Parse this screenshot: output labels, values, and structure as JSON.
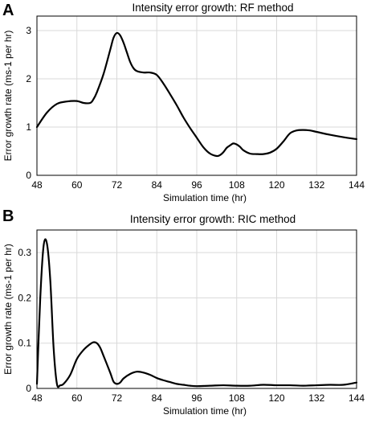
{
  "chart_data": [
    {
      "panel_label": "A",
      "type": "line",
      "title": "Intensity error growth: RF method",
      "xlabel": "Simulation time (hr)",
      "ylabel": "Error growth rate (ms-1 per hr)",
      "xlim": [
        48,
        144
      ],
      "ylim": [
        0,
        3.3
      ],
      "xticks": [
        48,
        60,
        72,
        84,
        96,
        108,
        120,
        132,
        144
      ],
      "yticks": [
        0,
        1,
        2,
        3
      ],
      "ytick_labels": [
        "0",
        "1",
        "2",
        "3"
      ],
      "grid": true,
      "series": [
        {
          "x": [
            48,
            51,
            54,
            57,
            60,
            62,
            64,
            65,
            66,
            68,
            70,
            71,
            72,
            73,
            74,
            75,
            76,
            77,
            78,
            80,
            82,
            84,
            86,
            88,
            90,
            92,
            94,
            96,
            98,
            100,
            102,
            103,
            104,
            105,
            106,
            107,
            108,
            109,
            110,
            112,
            114,
            116,
            118,
            120,
            122,
            124,
            126,
            128,
            130,
            132,
            136,
            140,
            144
          ],
          "y": [
            1.0,
            1.3,
            1.48,
            1.53,
            1.54,
            1.5,
            1.5,
            1.58,
            1.72,
            2.1,
            2.6,
            2.85,
            2.95,
            2.9,
            2.75,
            2.55,
            2.35,
            2.22,
            2.16,
            2.13,
            2.13,
            2.08,
            1.9,
            1.68,
            1.45,
            1.2,
            0.98,
            0.78,
            0.58,
            0.45,
            0.4,
            0.42,
            0.48,
            0.57,
            0.62,
            0.66,
            0.64,
            0.59,
            0.52,
            0.45,
            0.44,
            0.44,
            0.47,
            0.55,
            0.7,
            0.87,
            0.93,
            0.94,
            0.93,
            0.9,
            0.84,
            0.79,
            0.75
          ]
        }
      ]
    },
    {
      "panel_label": "B",
      "type": "line",
      "title": "Intensity error growth: RIC method",
      "xlabel": "Simulation time (hr)",
      "ylabel": "Error growth rate (ms-1 per hr)",
      "xlim": [
        48,
        144
      ],
      "ylim": [
        0,
        0.35
      ],
      "xticks": [
        48,
        60,
        72,
        84,
        96,
        108,
        120,
        132,
        144
      ],
      "yticks": [
        0,
        0.1,
        0.2,
        0.3
      ],
      "ytick_labels": [
        "0",
        "0.1",
        "0.2",
        "0.3"
      ],
      "grid": true,
      "series": [
        {
          "x": [
            48,
            49,
            50,
            51,
            52,
            53,
            54,
            55,
            56,
            58,
            60,
            62,
            64,
            65,
            66,
            67,
            68,
            70,
            71,
            72,
            73,
            74,
            76,
            78,
            80,
            82,
            84,
            86,
            88,
            90,
            92,
            94,
            96,
            100,
            104,
            108,
            112,
            116,
            120,
            124,
            128,
            132,
            136,
            140,
            144
          ],
          "y": [
            0.01,
            0.2,
            0.315,
            0.32,
            0.24,
            0.09,
            0.01,
            0.007,
            0.01,
            0.03,
            0.065,
            0.085,
            0.098,
            0.102,
            0.1,
            0.09,
            0.072,
            0.035,
            0.015,
            0.01,
            0.013,
            0.022,
            0.032,
            0.037,
            0.035,
            0.03,
            0.023,
            0.018,
            0.014,
            0.01,
            0.008,
            0.006,
            0.005,
            0.006,
            0.007,
            0.006,
            0.006,
            0.008,
            0.007,
            0.007,
            0.006,
            0.007,
            0.008,
            0.008,
            0.013
          ]
        }
      ]
    }
  ]
}
